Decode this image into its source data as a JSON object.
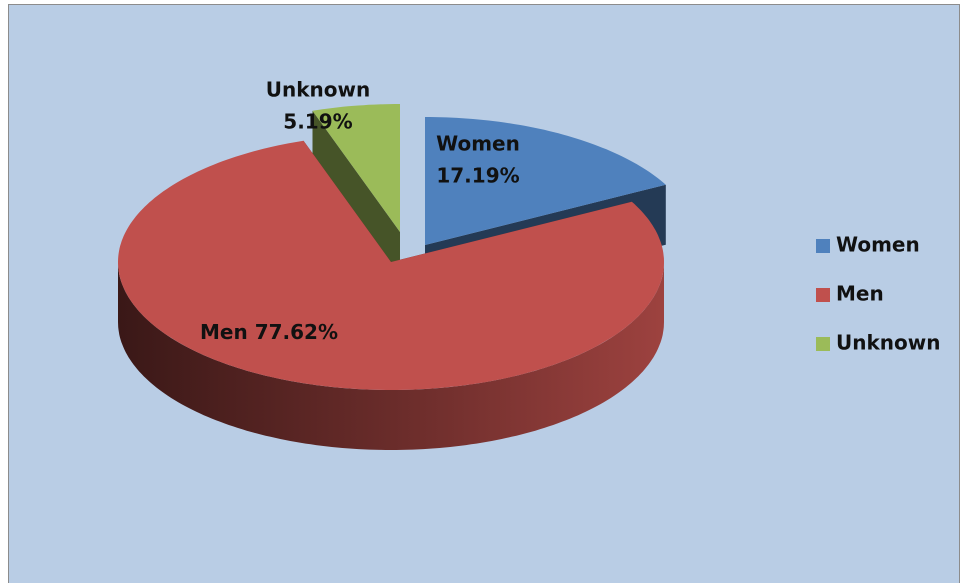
{
  "chart_data": {
    "type": "pie",
    "three_d": true,
    "categories": [
      "Women",
      "Men",
      "Unknown"
    ],
    "values": [
      17.19,
      77.62,
      5.19
    ],
    "value_labels": [
      "17.19%",
      "77.62%",
      "5.19%"
    ],
    "colors": [
      "#4f81bd",
      "#c0504d",
      "#9bbb59"
    ],
    "legend": "right"
  }
}
